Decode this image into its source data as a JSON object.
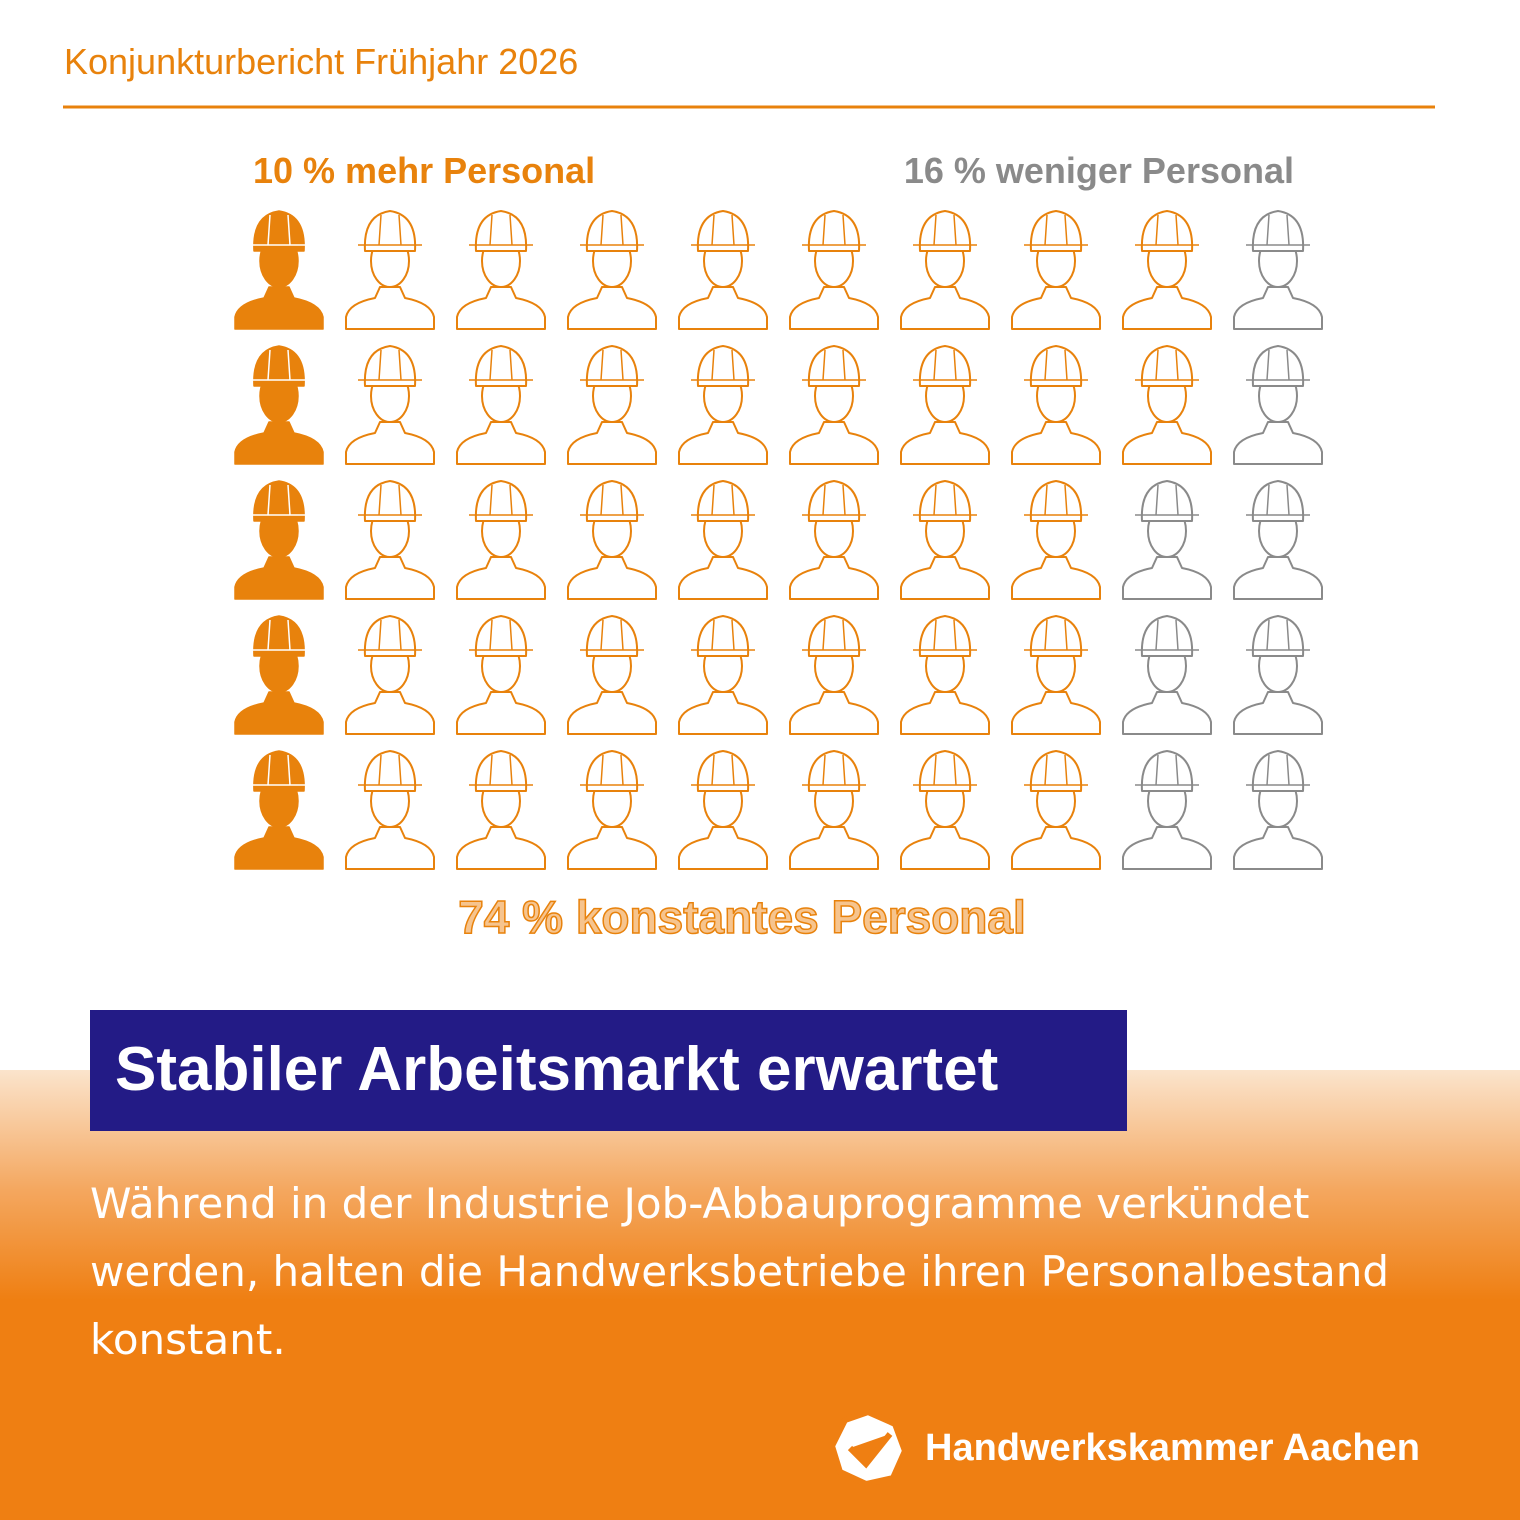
{
  "header": "Konjunkturbericht Frühjahr 2026",
  "chart_data": {
    "type": "pictogram",
    "values": [
      10,
      74,
      16
    ],
    "value_labels": [
      "10 % mehr Personal",
      "74 % konstantes Personal",
      "16 % weniger Personal"
    ],
    "colors": [
      "#e8820c",
      "#e8820c",
      "#8a8a8a"
    ],
    "fills": [
      "solid",
      "outline",
      "outline"
    ]
  },
  "headline": "Stabiler Arbeitsmarkt erwartet",
  "body": "Während in der Industrie Job-Abbauprogramme verkündet werden, halten die Handwerksbetriebe ihren Personalbestand konstant.",
  "logo": "Handwerkskammer Aachen"
}
